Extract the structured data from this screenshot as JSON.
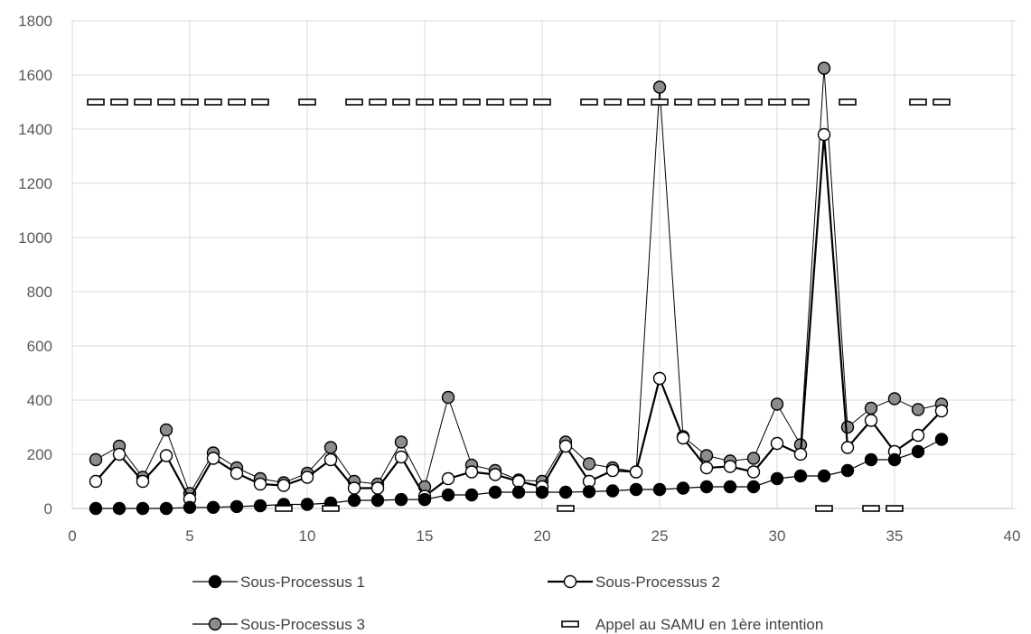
{
  "chart_data": {
    "type": "line",
    "xlim": [
      0,
      40
    ],
    "ylim": [
      0,
      1800
    ],
    "x_ticks": [
      0,
      5,
      10,
      15,
      20,
      25,
      30,
      35,
      40
    ],
    "y_ticks": [
      0,
      200,
      400,
      600,
      800,
      1000,
      1200,
      1400,
      1600,
      1800
    ],
    "grid": true,
    "legend_position": "bottom",
    "x": [
      1,
      2,
      3,
      4,
      5,
      6,
      7,
      8,
      9,
      10,
      11,
      12,
      13,
      14,
      15,
      16,
      17,
      18,
      19,
      20,
      21,
      22,
      23,
      24,
      25,
      26,
      27,
      28,
      29,
      30,
      31,
      32,
      33,
      34,
      35,
      36,
      37
    ],
    "series": [
      {
        "name": "Sous-Processus 1",
        "marker": "filled-black-circle",
        "color": "#000000",
        "values": [
          0,
          0,
          0,
          0,
          4,
          4,
          7,
          10,
          15,
          15,
          20,
          30,
          30,
          33,
          33,
          50,
          50,
          60,
          60,
          60,
          60,
          62,
          65,
          70,
          70,
          75,
          80,
          80,
          80,
          110,
          120,
          120,
          140,
          180,
          180,
          210,
          255
        ]
      },
      {
        "name": "Sous-Processus 2",
        "marker": "open-circle",
        "color": "#000000",
        "values": [
          100,
          200,
          100,
          195,
          35,
          185,
          130,
          90,
          85,
          115,
          180,
          75,
          75,
          190,
          45,
          110,
          135,
          125,
          100,
          80,
          230,
          100,
          140,
          135,
          480,
          260,
          150,
          155,
          135,
          240,
          200,
          1380,
          225,
          325,
          210,
          270,
          360
        ]
      },
      {
        "name": "Sous-Processus 3",
        "marker": "gray-circle",
        "color": "#808080",
        "values": [
          180,
          230,
          115,
          290,
          55,
          205,
          150,
          110,
          95,
          130,
          225,
          100,
          90,
          245,
          80,
          410,
          160,
          140,
          105,
          100,
          245,
          165,
          150,
          135,
          1555,
          265,
          195,
          175,
          185,
          385,
          235,
          1625,
          300,
          370,
          405,
          365,
          385
        ]
      },
      {
        "name": "Appel au SAMU en 1ère intention",
        "marker": "dash",
        "color": "#000000",
        "points": [
          [
            1,
            1500
          ],
          [
            2,
            1500
          ],
          [
            3,
            1500
          ],
          [
            4,
            1500
          ],
          [
            5,
            1500
          ],
          [
            6,
            1500
          ],
          [
            7,
            1500
          ],
          [
            8,
            1500
          ],
          [
            9,
            0
          ],
          [
            10,
            1500
          ],
          [
            11,
            0
          ],
          [
            12,
            1500
          ],
          [
            13,
            1500
          ],
          [
            14,
            1500
          ],
          [
            15,
            1500
          ],
          [
            16,
            1500
          ],
          [
            17,
            1500
          ],
          [
            18,
            1500
          ],
          [
            19,
            1500
          ],
          [
            20,
            1500
          ],
          [
            21,
            0
          ],
          [
            22,
            1500
          ],
          [
            23,
            1500
          ],
          [
            24,
            1500
          ],
          [
            25,
            1500
          ],
          [
            26,
            1500
          ],
          [
            27,
            1500
          ],
          [
            28,
            1500
          ],
          [
            29,
            1500
          ],
          [
            30,
            1500
          ],
          [
            31,
            1500
          ],
          [
            32,
            0
          ],
          [
            33,
            1500
          ],
          [
            34,
            0
          ],
          [
            35,
            0
          ],
          [
            36,
            1500
          ],
          [
            37,
            1500
          ]
        ]
      }
    ]
  }
}
